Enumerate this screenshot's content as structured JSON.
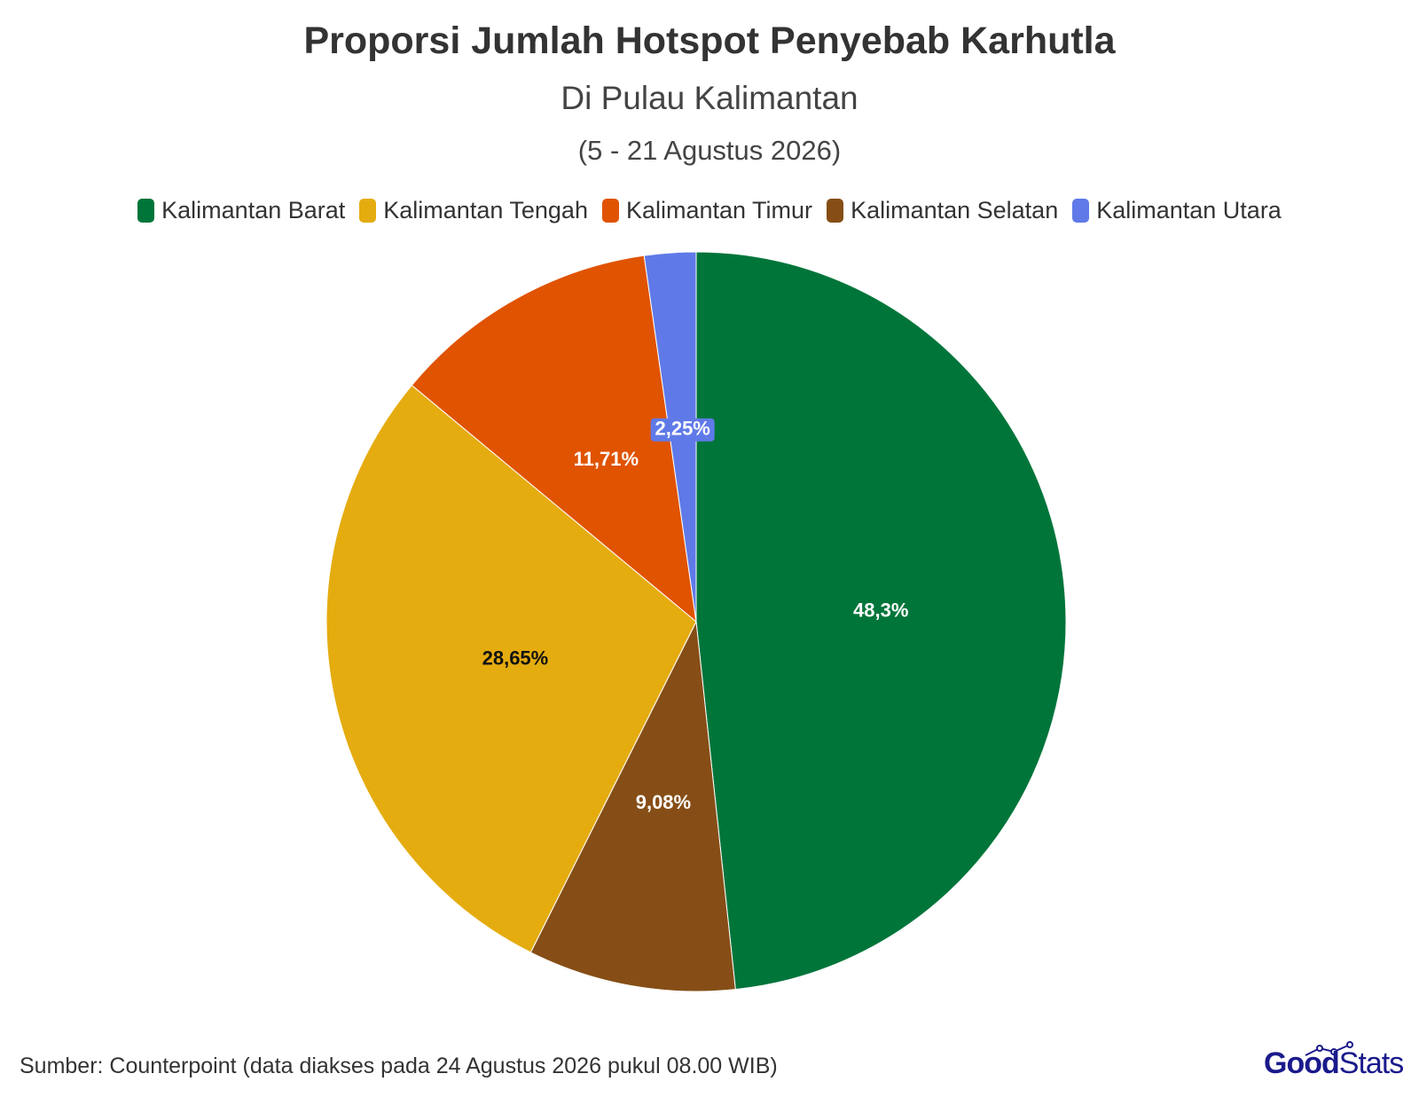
{
  "chart_data": {
    "type": "pie",
    "title": "Proporsi Jumlah Hotspot Penyebab Karhutla",
    "subtitle": "Di Pulau Kalimantan",
    "subtitle2": "(5 - 21 Agustus 2026)",
    "legend_position": "top",
    "slices": [
      {
        "name": "Kalimantan Barat",
        "value": 48.3,
        "label": "48,3%",
        "color": "#00753a",
        "label_color": "#ffffff"
      },
      {
        "name": "Kalimantan Selatan",
        "value": 9.08,
        "label": "9,08%",
        "color": "#864e16",
        "label_color": "#ffffff"
      },
      {
        "name": "Kalimantan Tengah",
        "value": 28.65,
        "label": "28,65%",
        "color": "#e5ac10",
        "label_color": "#111111"
      },
      {
        "name": "Kalimantan Timur",
        "value": 11.71,
        "label": "11,71%",
        "color": "#e05300",
        "label_color": "#ffffff"
      },
      {
        "name": "Kalimantan Utara",
        "value": 2.25,
        "label": "2,25%",
        "color": "#5f7ae8",
        "label_color": "#ffffff"
      }
    ],
    "legend": [
      {
        "name": "Kalimantan Barat",
        "color": "#00753a"
      },
      {
        "name": "Kalimantan Tengah",
        "color": "#e5ac10"
      },
      {
        "name": "Kalimantan Timur",
        "color": "#e05300"
      },
      {
        "name": "Kalimantan Selatan",
        "color": "#864e16"
      },
      {
        "name": "Kalimantan Utara",
        "color": "#5f7ae8"
      }
    ]
  },
  "source": "Sumber: Counterpoint (data diakses pada 24 Agustus 2026 pukul 08.00 WIB)",
  "logo": {
    "part1": "Good",
    "part2": "Stats",
    "color": "#1a1a8c"
  }
}
